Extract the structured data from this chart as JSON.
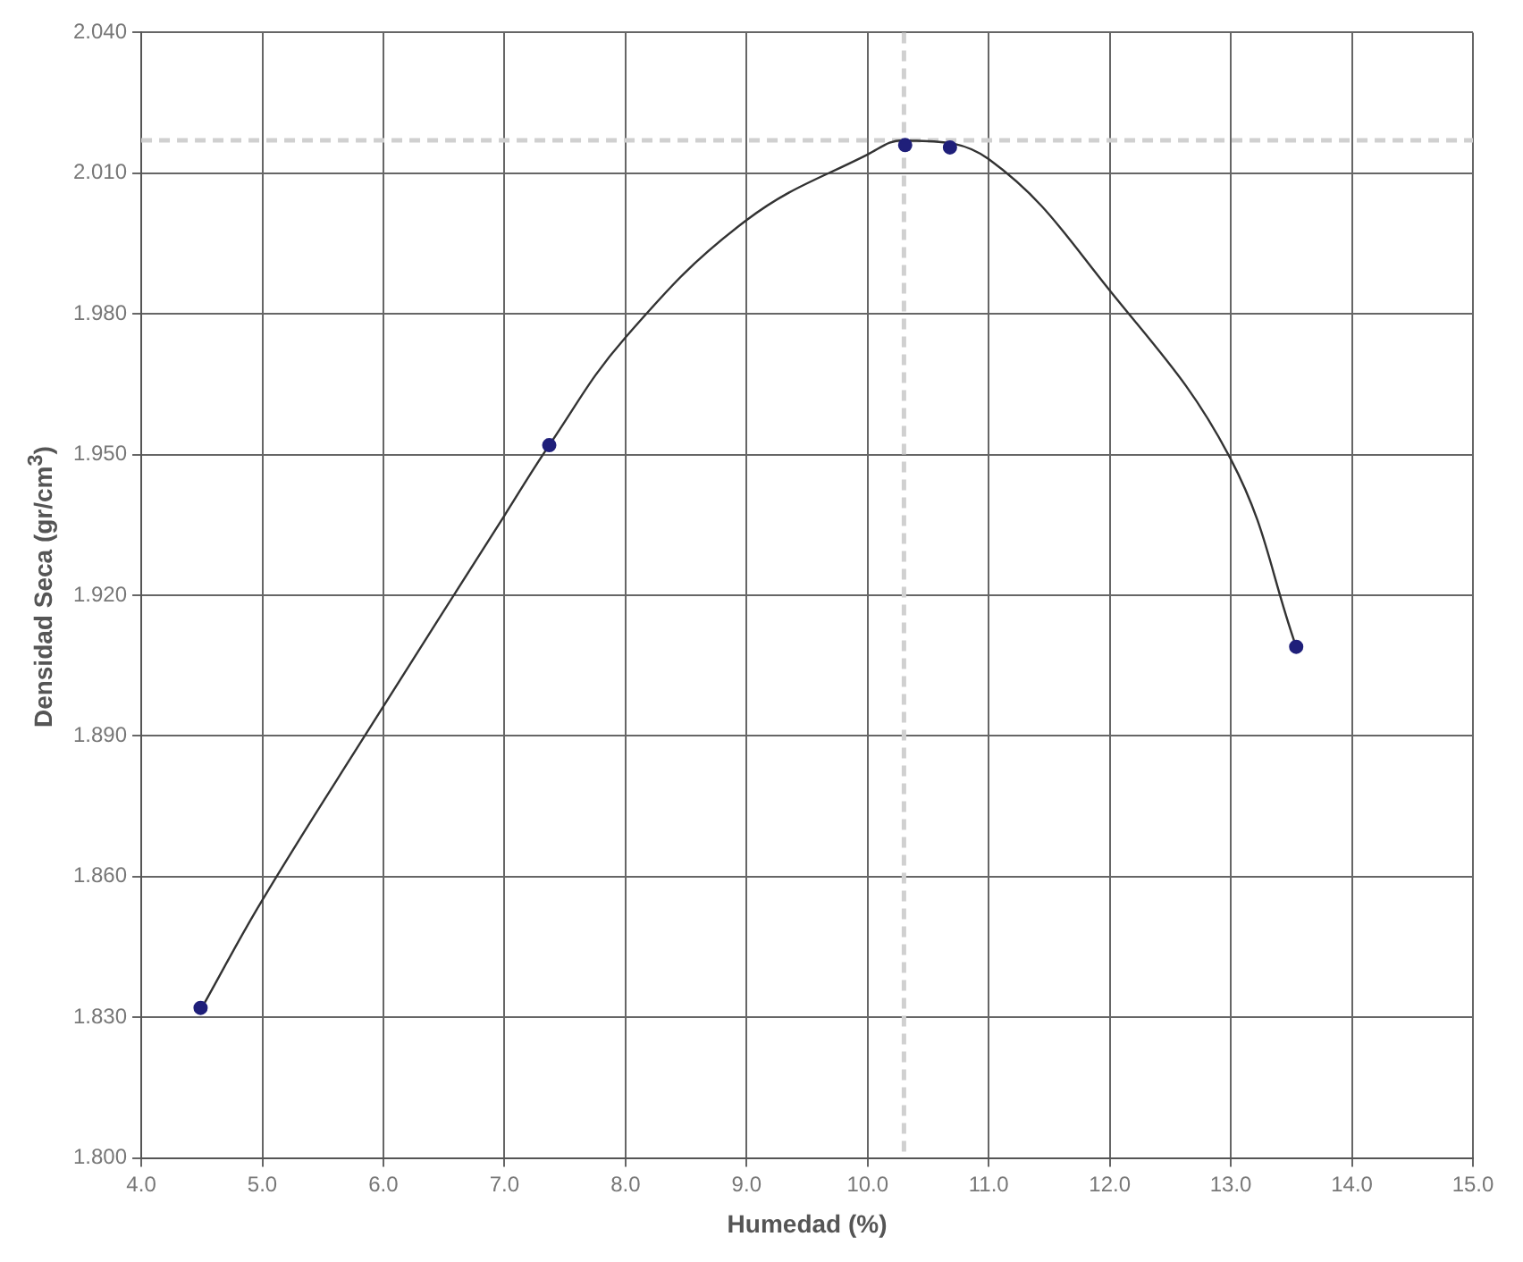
{
  "chart_data": {
    "type": "scatter",
    "xlabel": "Humedad (%)",
    "ylabel": "Densidad  Seca (gr/cm$^{3}$)",
    "xlim": [
      4,
      15
    ],
    "ylim": [
      1.8,
      2.04
    ],
    "xticks": [
      {
        "value": 4,
        "label": "4.0"
      },
      {
        "value": 5,
        "label": "5.0"
      },
      {
        "value": 6,
        "label": "6.0"
      },
      {
        "value": 7,
        "label": "7.0"
      },
      {
        "value": 8,
        "label": "8.0"
      },
      {
        "value": 9,
        "label": "9.0"
      },
      {
        "value": 10,
        "label": "10.0"
      },
      {
        "value": 11,
        "label": "11.0"
      },
      {
        "value": 12,
        "label": "12.0"
      },
      {
        "value": 13,
        "label": "13.0"
      },
      {
        "value": 14,
        "label": "14.0"
      },
      {
        "value": 15,
        "label": "15.0"
      }
    ],
    "yticks": [
      {
        "value": 1.8,
        "label": "1.800"
      },
      {
        "value": 1.83,
        "label": "1.830"
      },
      {
        "value": 1.86,
        "label": "1.860"
      },
      {
        "value": 1.89,
        "label": "1.890"
      },
      {
        "value": 1.92,
        "label": "1.920"
      },
      {
        "value": 1.95,
        "label": "1.950"
      },
      {
        "value": 1.98,
        "label": "1.980"
      },
      {
        "value": 2.01,
        "label": "2.010"
      },
      {
        "value": 2.04,
        "label": "2.040"
      }
    ],
    "grid": true,
    "legend": false,
    "series": [
      {
        "type": "line",
        "color": "#333333",
        "marker": "none",
        "line_style": "solid",
        "x": [
          4.5,
          5.0,
          5.87,
          7.0,
          7.37,
          8.0,
          9.0,
          10.0,
          10.3,
          11.0,
          12.0,
          13.0,
          13.54
        ],
        "values": [
          1.832,
          1.855,
          1.891,
          1.937,
          1.952,
          1.975,
          2.0,
          2.014,
          2.017,
          2.013,
          1.985,
          1.949,
          1.909
        ]
      },
      {
        "type": "scatter",
        "color": "#1f1f7a",
        "marker": "circle",
        "x": [
          4.49,
          7.37,
          10.31,
          10.68,
          13.54
        ],
        "values": [
          1.832,
          1.952,
          2.016,
          2.0155,
          1.909
        ]
      }
    ],
    "ref_lines": [
      {
        "axis": "x",
        "value": 10.3,
        "color": "#d0d0d0",
        "line_style": "dashed"
      },
      {
        "axis": "y",
        "value": 2.017,
        "color": "#d0d0d0",
        "line_style": "dashed"
      }
    ]
  }
}
